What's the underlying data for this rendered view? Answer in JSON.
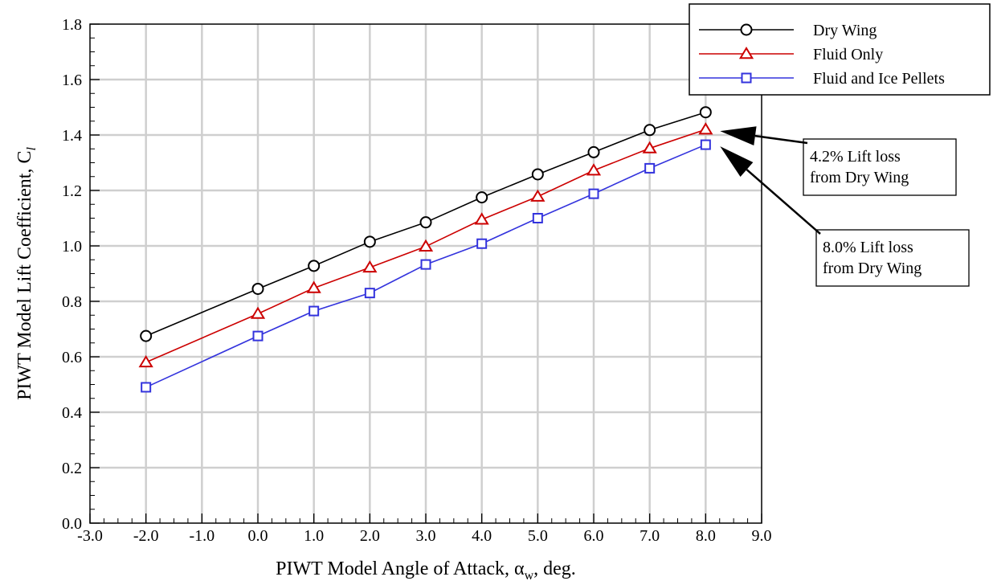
{
  "chart_data": {
    "type": "line",
    "xlabel": "PIWT Model Angle of Attack, α",
    "xlabel_sub": "w",
    "xlabel_tail": ", deg.",
    "ylabel": "PIWT Model Lift Coefficient, C",
    "ylabel_sub": "l",
    "xlim": [
      -3.0,
      9.0
    ],
    "ylim": [
      0.0,
      1.8
    ],
    "x_ticks": [
      -3.0,
      -2.0,
      -1.0,
      0.0,
      1.0,
      2.0,
      3.0,
      4.0,
      5.0,
      6.0,
      7.0,
      8.0,
      9.0
    ],
    "x_tick_labels": [
      "-3.0",
      "-2.0",
      "-1.0",
      "0.0",
      "1.0",
      "2.0",
      "3.0",
      "4.0",
      "5.0",
      "6.0",
      "7.0",
      "8.0",
      "9.0"
    ],
    "y_ticks": [
      0.0,
      0.2,
      0.4,
      0.6,
      0.8,
      1.0,
      1.2,
      1.4,
      1.6,
      1.8
    ],
    "y_tick_labels": [
      "0.0",
      "0.2",
      "0.4",
      "0.6",
      "0.8",
      "1.0",
      "1.2",
      "1.4",
      "1.6",
      "1.8"
    ],
    "grid": true,
    "legend_position": "top-right",
    "x": [
      -2.0,
      0.0,
      1.0,
      2.0,
      3.0,
      4.0,
      5.0,
      6.0,
      7.0,
      8.0
    ],
    "series": [
      {
        "name": "Dry Wing",
        "color": "#000000",
        "marker": "circle",
        "values": [
          0.675,
          0.845,
          0.928,
          1.015,
          1.085,
          1.175,
          1.258,
          1.338,
          1.418,
          1.482
        ]
      },
      {
        "name": "Fluid Only",
        "color": "#cc0000",
        "marker": "triangle",
        "values": [
          0.58,
          0.755,
          0.848,
          0.922,
          0.998,
          1.095,
          1.178,
          1.272,
          1.352,
          1.42
        ]
      },
      {
        "name": "Fluid and Ice Pellets",
        "color": "#3333dd",
        "marker": "square",
        "values": [
          0.49,
          0.675,
          0.765,
          0.83,
          0.933,
          1.008,
          1.1,
          1.188,
          1.28,
          1.365
        ]
      }
    ],
    "annotations": [
      {
        "lines": [
          "4.2% Lift loss",
          "from Dry Wing"
        ],
        "points_to": {
          "x": 8.0,
          "y": 1.42
        }
      },
      {
        "lines": [
          "8.0% Lift loss",
          "from Dry Wing"
        ],
        "points_to": {
          "x": 8.0,
          "y": 1.365
        }
      }
    ]
  }
}
